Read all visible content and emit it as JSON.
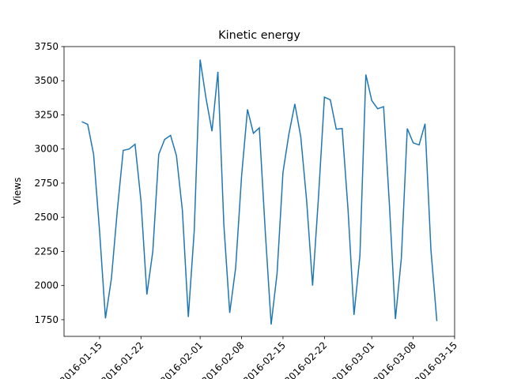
{
  "chart_data": {
    "type": "line",
    "title": "Kinetic energy",
    "ylabel": "Views",
    "x": [
      "2016-01-12",
      "2016-01-13",
      "2016-01-14",
      "2016-01-15",
      "2016-01-16",
      "2016-01-17",
      "2016-01-18",
      "2016-01-19",
      "2016-01-20",
      "2016-01-21",
      "2016-01-22",
      "2016-01-23",
      "2016-01-24",
      "2016-01-25",
      "2016-01-26",
      "2016-01-27",
      "2016-01-28",
      "2016-01-29",
      "2016-01-30",
      "2016-01-31",
      "2016-02-01",
      "2016-02-02",
      "2016-02-03",
      "2016-02-04",
      "2016-02-05",
      "2016-02-06",
      "2016-02-07",
      "2016-02-08",
      "2016-02-09",
      "2016-02-10",
      "2016-02-11",
      "2016-02-12",
      "2016-02-13",
      "2016-02-14",
      "2016-02-15",
      "2016-02-16",
      "2016-02-17",
      "2016-02-18",
      "2016-02-19",
      "2016-02-20",
      "2016-02-21",
      "2016-02-22",
      "2016-02-23",
      "2016-02-24",
      "2016-02-25",
      "2016-02-26",
      "2016-02-27",
      "2016-02-28",
      "2016-02-29",
      "2016-03-01",
      "2016-03-02",
      "2016-03-03",
      "2016-03-04",
      "2016-03-05",
      "2016-03-06",
      "2016-03-07",
      "2016-03-08",
      "2016-03-09",
      "2016-03-10",
      "2016-03-11",
      "2016-03-12"
    ],
    "values": [
      3200,
      3180,
      2960,
      2400,
      1760,
      2050,
      2550,
      2990,
      3000,
      3035,
      2620,
      1935,
      2250,
      2960,
      3070,
      3100,
      2950,
      2550,
      1770,
      2400,
      3655,
      3370,
      3130,
      3565,
      2450,
      1800,
      2130,
      2800,
      3290,
      3115,
      3155,
      2400,
      1715,
      2090,
      2830,
      3110,
      3330,
      3090,
      2620,
      2000,
      2650,
      3380,
      3360,
      3145,
      3150,
      2550,
      1785,
      2220,
      3545,
      3355,
      3295,
      3310,
      2580,
      1755,
      2200,
      3150,
      3045,
      3030,
      3185,
      2260,
      1740
    ],
    "color": "#1f77b4",
    "xlim": [
      "2016-01-09",
      "2016-03-15"
    ],
    "xticks": [
      "2016-01-15",
      "2016-01-22",
      "2016-02-01",
      "2016-02-08",
      "2016-02-15",
      "2016-02-22",
      "2016-03-01",
      "2016-03-08",
      "2016-03-15"
    ],
    "ylim": [
      1628,
      3750
    ],
    "yticks": [
      1750,
      2000,
      2250,
      2500,
      2750,
      3000,
      3250,
      3500,
      3750
    ],
    "grid": false
  }
}
